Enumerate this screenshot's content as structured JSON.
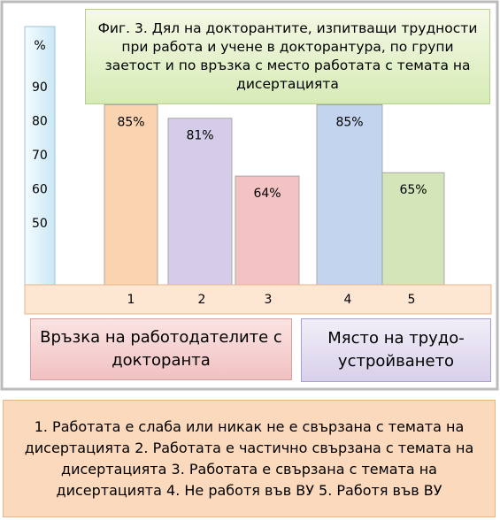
{
  "chart_data": {
    "type": "bar",
    "title": "Фиг. 3. Дял на докторантите, изпитващи трудности при работа и учене в докторантура, по групи заетост и по връзка с место работата с темата на дисертацията",
    "ylabel": "%",
    "categories": [
      "1",
      "2",
      "3",
      "4",
      "5"
    ],
    "values": [
      85,
      81,
      64,
      85,
      65
    ],
    "value_labels": [
      "85%",
      "81%",
      "64%",
      "85%",
      "65%"
    ],
    "colors": [
      "#f9cfa8",
      "#cfc6e6",
      "#f2bcbc",
      "#bcd0ec",
      "#cfe2b2"
    ],
    "ylim": [
      32,
      108
    ],
    "yticks": [
      50,
      60,
      70,
      80,
      90
    ],
    "groups": [
      "Връзка на работодателите с докторанта",
      "Място на трудо-устройването"
    ],
    "note": "1. Работата е слаба или никак не е свързана с темата на дисертацията 2. Работата е частично свързана с темата на дисертацията 3. Работата е свързана с темата на дисертацията 4. Не работя във ВУ 5. Работя във ВУ"
  }
}
